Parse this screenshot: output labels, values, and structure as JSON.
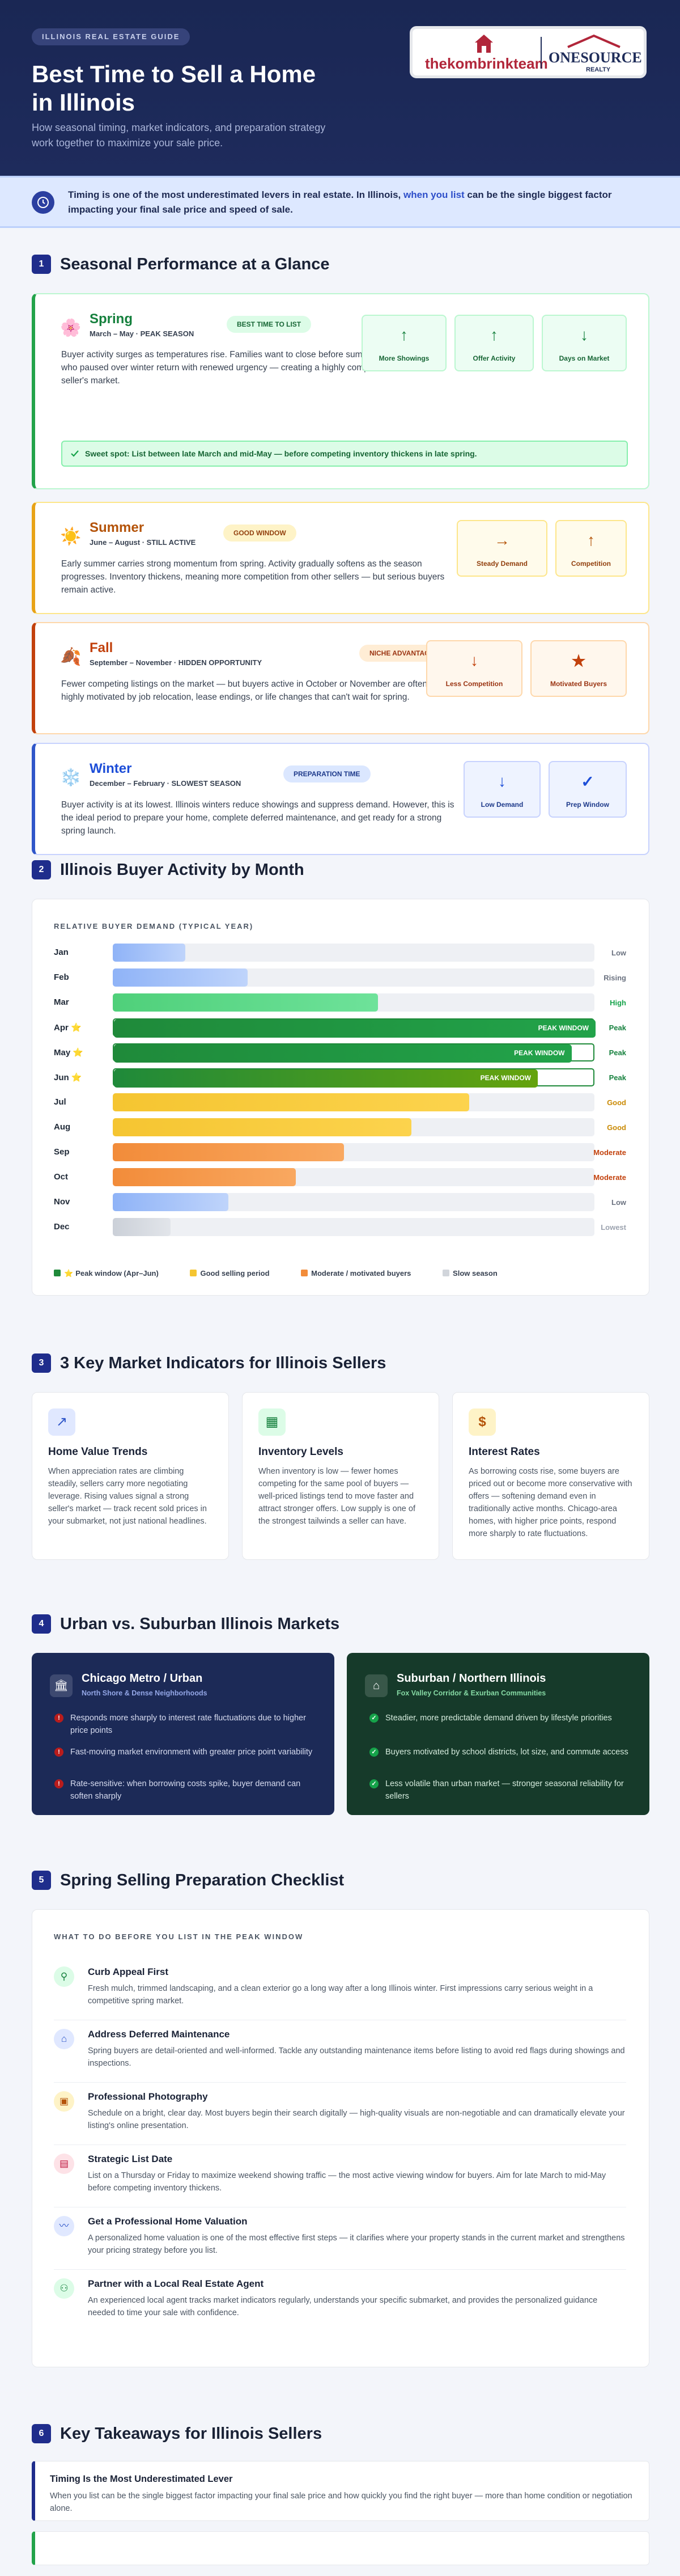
{
  "header": {
    "pill": "ILLINOIS REAL ESTATE GUIDE",
    "title": "Best Time to Sell a Home in Illinois",
    "subtitle": "How seasonal timing, market indicators, and preparation strategy work together to maximize your sale price."
  },
  "logo": {
    "brand1": "thekombrinkteam",
    "brand2": "ONESOURCE",
    "brand2_sub": "REALTY"
  },
  "intro": {
    "text_a": "Timing is one of the most underestimated levers in real estate. In Illinois, ",
    "text_b": "when you list",
    "text_c": " can be the single biggest factor impacting your final sale price and speed of sale."
  },
  "sections": [
    "Seasonal Performance at a Glance",
    "Illinois Buyer Activity by Month",
    "3 Key Market Indicators for Illinois Sellers",
    "Urban vs. Suburban Illinois Markets",
    "Spring Selling Preparation Checklist",
    "Key Takeaways for Illinois Sellers"
  ],
  "section_numbers": [
    "1",
    "2",
    "3",
    "4",
    "5",
    "6"
  ],
  "seasons": [
    {
      "name": "Spring",
      "dates": "March – May · PEAK SEASON",
      "badge": "BEST TIME TO LIST",
      "icon": "flower-icon",
      "desc": "Buyer activity surges as temperatures rise. Families want to close before summer. Buyers who paused over winter return with renewed urgency — creating a highly competitive seller's market.",
      "tiles": [
        {
          "arrow": "↑",
          "label": "More Showings"
        },
        {
          "arrow": "↑",
          "label": "Offer Activity"
        },
        {
          "arrow": "↓",
          "label": "Days on Market"
        }
      ],
      "spot": "Sweet spot: List between late March and mid-May — before competing inventory thickens in late spring.",
      "color": "#22a34a"
    },
    {
      "name": "Summer",
      "dates": "June – August · STILL ACTIVE",
      "badge": "GOOD WINDOW",
      "icon": "sun-icon",
      "desc": "Early summer carries strong momentum from spring. Activity gradually softens as the season progresses. Inventory thickens, meaning more competition from other sellers — but serious buyers remain active.",
      "tiles": [
        {
          "arrow": "→",
          "label": "Steady Demand"
        },
        {
          "arrow": "↑",
          "label": "Competition"
        }
      ],
      "color": "#e8a317"
    },
    {
      "name": "Fall",
      "dates": "September – November · HIDDEN OPPORTUNITY",
      "badge": "NICHE ADVANTAGE",
      "icon": "leaf-icon",
      "desc": "Fewer competing listings on the market — but buyers active in October or November are often highly motivated by job relocation, lease endings, or life changes that can't wait for spring.",
      "tiles": [
        {
          "arrow": "↓",
          "label": "Less Competition"
        },
        {
          "arrow": "★",
          "label": "Motivated Buyers"
        }
      ],
      "color": "#c2410c"
    },
    {
      "name": "Winter",
      "dates": "December – February · SLOWEST SEASON",
      "badge": "PREPARATION TIME",
      "icon": "snowflake-icon",
      "desc": "Buyer activity is at its lowest. Illinois winters reduce showings and suppress demand. However, this is the ideal period to prepare your home, complete deferred maintenance, and get ready for a strong spring launch.",
      "tiles": [
        {
          "arrow": "↓",
          "label": "Low Demand"
        },
        {
          "arrow": "✓",
          "label": "Prep Window"
        }
      ],
      "color": "#2f56c9"
    }
  ],
  "chart_data": {
    "type": "bar",
    "title": "RELATIVE BUYER DEMAND (TYPICAL YEAR)",
    "categories": [
      "Jan",
      "Feb",
      "Mar",
      "Apr",
      "May",
      "Jun",
      "Jul",
      "Aug",
      "Sep",
      "Oct",
      "Nov",
      "Dec"
    ],
    "values": [
      15,
      28,
      55,
      100,
      95,
      88,
      74,
      62,
      48,
      38,
      24,
      12
    ],
    "status": [
      "Low",
      "Rising",
      "High",
      "Peak",
      "Peak",
      "Peak",
      "Good",
      "Good",
      "Moderate",
      "Moderate",
      "Low",
      "Lowest"
    ],
    "peak_label": "PEAK WINDOW",
    "star": "⭐",
    "legend": [
      "Peak window (Apr–Jun)",
      "Good selling period",
      "Moderate / motivated buyers",
      "Slow season"
    ],
    "xlim": [
      0,
      100
    ]
  },
  "kpis": [
    {
      "title": "Home Value Trends",
      "icon": "trend-up-icon",
      "desc": "When appreciation rates are climbing steadily, sellers carry more negotiating leverage. Rising values signal a strong seller's market — track recent sold prices in your submarket, not just national headlines."
    },
    {
      "title": "Inventory Levels",
      "icon": "house-stack-icon",
      "desc": "When inventory is low — fewer homes competing for the same pool of buyers — well-priced listings tend to move faster and attract stronger offers. Low supply is one of the strongest tailwinds a seller can have."
    },
    {
      "title": "Interest Rates",
      "icon": "dollar-icon",
      "desc": "As borrowing costs rise, some buyers are priced out or become more conservative with offers — softening demand even in traditionally active months. Chicago-area homes, with higher price points, respond more sharply to rate fluctuations."
    }
  ],
  "markets": [
    {
      "title": "Chicago Metro / Urban",
      "sub": "North Shore & Dense Neighborhoods",
      "points": [
        "Responds more sharply to interest rate fluctuations due to higher price points",
        "Fast-moving market environment with greater price point variability",
        "Rate-sensitive: when borrowing costs spike, buyer demand can soften sharply"
      ]
    },
    {
      "title": "Suburban / Northern Illinois",
      "sub": "Fox Valley Corridor & Exurban Communities",
      "points": [
        "Steadier, more predictable demand driven by lifestyle priorities",
        "Buyers motivated by school districts, lot size, and commute access",
        "Less volatile than urban market — stronger seasonal reliability for sellers"
      ]
    }
  ],
  "checklist": {
    "title": "WHAT TO DO BEFORE YOU LIST IN THE PEAK WINDOW",
    "items": [
      {
        "title": "Curb Appeal First",
        "desc": "Fresh mulch, trimmed landscaping, and a clean exterior go a long way after a long Illinois winter. First impressions carry serious weight in a competitive spring market."
      },
      {
        "title": "Address Deferred Maintenance",
        "desc": "Spring buyers are detail-oriented and well-informed. Tackle any outstanding maintenance items before listing to avoid red flags during showings and inspections."
      },
      {
        "title": "Professional Photography",
        "desc": "Schedule on a bright, clear day. Most buyers begin their search digitally — high-quality visuals are non-negotiable and can dramatically elevate your listing's online presentation."
      },
      {
        "title": "Strategic List Date",
        "desc": "List on a Thursday or Friday to maximize weekend showing traffic — the most active viewing window for buyers. Aim for late March to mid-May before competing inventory thickens."
      },
      {
        "title": "Get a Professional Home Valuation",
        "desc": "A personalized home valuation is one of the most effective first steps — it clarifies where your property stands in the current market and strengthens your pricing strategy before you list."
      },
      {
        "title": "Partner with a Local Real Estate Agent",
        "desc": "An experienced local agent tracks market indicators regularly, understands your specific submarket, and provides the personalized guidance needed to time your sale with confidence."
      }
    ]
  },
  "takeaways": [
    {
      "title": "Timing Is the Most Underestimated Lever",
      "desc": "When you list can be the single biggest factor impacting your final sale price and how quickly you find the right buyer — more than home condition or negotiation alone."
    }
  ],
  "colors": {
    "navy": "#1e2b5c",
    "peak": "#1f8a3a",
    "good": "#f5c531",
    "moderate": "#f28c3a",
    "slow": "#d1d5db"
  }
}
